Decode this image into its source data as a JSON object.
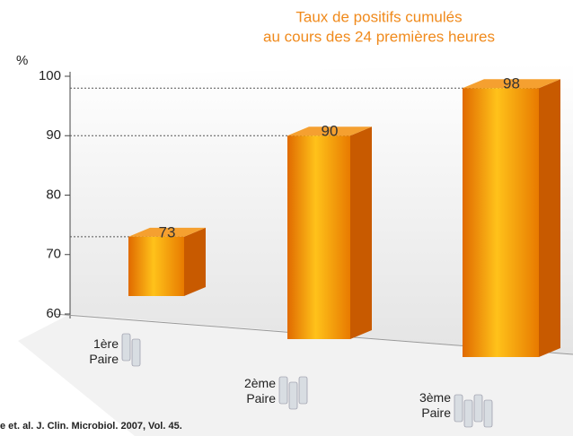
{
  "chart_data": {
    "type": "bar3d",
    "title": [
      "Taux de positifs cumulés",
      "au cours des 24 premières heures"
    ],
    "y_label": "%",
    "categories": [
      "1ère Paire",
      "2ème Paire",
      "3ème Paire"
    ],
    "values": [
      73,
      90,
      98
    ],
    "color": "#f08a1c",
    "ylim": [
      60,
      100
    ],
    "yticks": [
      60,
      70,
      80,
      90,
      100
    ],
    "footnote": "e et. al. J. Clin. Microbiol. 2007, Vol. 45."
  }
}
